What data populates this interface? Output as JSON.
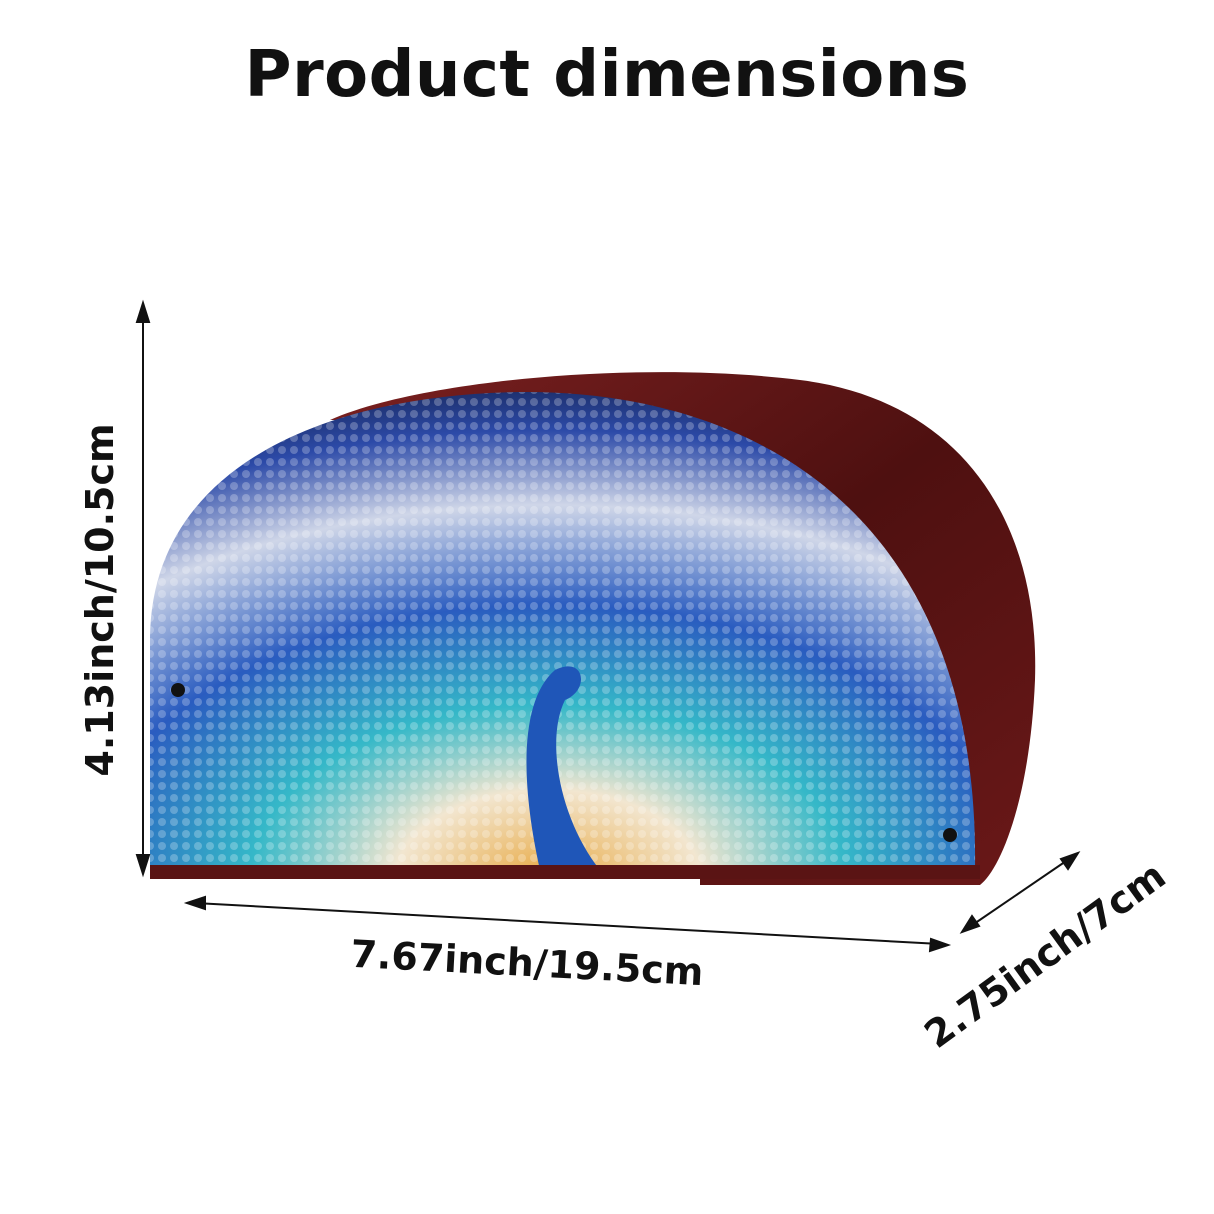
{
  "title": "Product dimensions",
  "dimensions": {
    "height": "4.13inch/10.5cm",
    "width": "7.67inch/19.5cm",
    "depth": "2.75inch/7cm"
  },
  "colors": {
    "wood": "#5a1414",
    "peacock_blue": "#2a4fb0",
    "teal": "#3cb8c8",
    "gold": "#e0a830"
  }
}
